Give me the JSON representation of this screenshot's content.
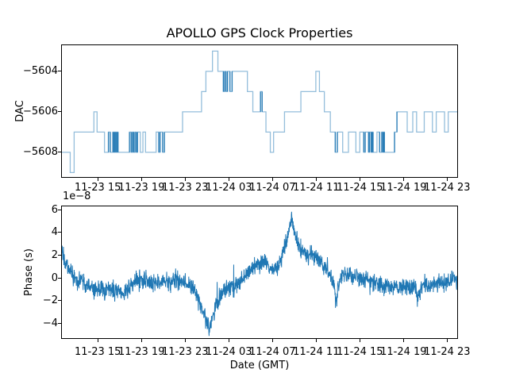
{
  "figure": {
    "background": "#ffffff",
    "line_color": "#1f77b4",
    "step_line_light": "rgba(31,119,180,0.48)",
    "step_line_dark": "rgba(31,119,180,0.92)"
  },
  "chart_data": [
    {
      "type": "line",
      "name": "dac-subplot",
      "title": "APOLLO GPS Clock Properties",
      "ylabel": "DAC",
      "drawstyle": "steps-post",
      "legend": "none",
      "grid": false,
      "yticks": [
        -5604,
        -5606,
        -5608
      ],
      "yticklabels": [
        "−5604",
        "−5606",
        "−5608"
      ],
      "ylim": [
        -5609.22,
        -5602.71
      ],
      "xlim_hours": [
        11.71,
        47.92
      ],
      "xtick_hours": [
        15,
        19,
        23,
        27,
        31,
        35,
        39,
        43,
        47
      ],
      "xticklabels": [
        "11-23 15",
        "11-23 19",
        "11-23 23",
        "11-24 03",
        "11-24 07",
        "11-24 11",
        "11-24 15",
        "11-24 19",
        "11-24 23"
      ],
      "step_points": [
        [
          11.71,
          -5608
        ],
        [
          12.47,
          -5609
        ],
        [
          12.83,
          -5607
        ],
        [
          14.64,
          -5606
        ],
        [
          14.93,
          -5607
        ],
        [
          15.61,
          -5608
        ],
        [
          15.97,
          -5607
        ],
        [
          16.14,
          -5608
        ],
        [
          16.38,
          -5607
        ],
        [
          16.45,
          -5608
        ],
        [
          16.55,
          -5607
        ],
        [
          16.65,
          -5608
        ],
        [
          16.75,
          -5607
        ],
        [
          16.85,
          -5608
        ],
        [
          17.9,
          -5607
        ],
        [
          18.05,
          -5608
        ],
        [
          18.17,
          -5607
        ],
        [
          18.28,
          -5608
        ],
        [
          18.4,
          -5607
        ],
        [
          18.52,
          -5608
        ],
        [
          18.64,
          -5607
        ],
        [
          18.89,
          -5608
        ],
        [
          19.13,
          -5607
        ],
        [
          19.37,
          -5608
        ],
        [
          20.34,
          -5607
        ],
        [
          20.58,
          -5608
        ],
        [
          20.7,
          -5607
        ],
        [
          20.94,
          -5608
        ],
        [
          21.1,
          -5607
        ],
        [
          22.76,
          -5606
        ],
        [
          24.5,
          -5605
        ],
        [
          24.9,
          -5604
        ],
        [
          25.5,
          -5603
        ],
        [
          26.0,
          -5604
        ],
        [
          26.5,
          -5605
        ],
        [
          26.62,
          -5604
        ],
        [
          26.75,
          -5605
        ],
        [
          26.88,
          -5604
        ],
        [
          27.1,
          -5605
        ],
        [
          27.3,
          -5604
        ],
        [
          28.7,
          -5605
        ],
        [
          29.2,
          -5606
        ],
        [
          29.9,
          -5605
        ],
        [
          30.05,
          -5606
        ],
        [
          30.4,
          -5607
        ],
        [
          30.8,
          -5608
        ],
        [
          31.1,
          -5607
        ],
        [
          32.1,
          -5606
        ],
        [
          33.6,
          -5605
        ],
        [
          34.97,
          -5604
        ],
        [
          35.3,
          -5605
        ],
        [
          35.75,
          -5606
        ],
        [
          36.3,
          -5607
        ],
        [
          36.75,
          -5608
        ],
        [
          36.94,
          -5607
        ],
        [
          37.43,
          -5608
        ],
        [
          37.96,
          -5607
        ],
        [
          38.64,
          -5608
        ],
        [
          39.0,
          -5607
        ],
        [
          39.36,
          -5608
        ],
        [
          39.49,
          -5607
        ],
        [
          39.8,
          -5608
        ],
        [
          39.9,
          -5607
        ],
        [
          40.05,
          -5608
        ],
        [
          40.12,
          -5607
        ],
        [
          40.21,
          -5608
        ],
        [
          40.57,
          -5607
        ],
        [
          40.81,
          -5608
        ],
        [
          41.01,
          -5607
        ],
        [
          41.12,
          -5608
        ],
        [
          41.18,
          -5607
        ],
        [
          41.25,
          -5608
        ],
        [
          42.18,
          -5607
        ],
        [
          42.4,
          -5606
        ],
        [
          43.34,
          -5607
        ],
        [
          43.85,
          -5606
        ],
        [
          44.2,
          -5607
        ],
        [
          44.9,
          -5606
        ],
        [
          45.65,
          -5607
        ],
        [
          46.0,
          -5606
        ],
        [
          46.76,
          -5607
        ],
        [
          47.1,
          -5606
        ]
      ],
      "dark_pulse_threshold_hours": 0.23
    },
    {
      "type": "line",
      "name": "phase-subplot",
      "ylabel": "Phase (s)",
      "xlabel": "Date (GMT)",
      "offset_text": "1e−8",
      "unit_scale": 1e-08,
      "legend": "none",
      "grid": false,
      "yticks": [
        6,
        4,
        2,
        0,
        -2,
        -4
      ],
      "yticklabels": [
        "6",
        "4",
        "2",
        "0",
        "−2",
        "−4"
      ],
      "ylim": [
        -5.3,
        6.28
      ],
      "xlim_hours": [
        11.71,
        47.92
      ],
      "xtick_hours": [
        15,
        19,
        23,
        27,
        31,
        35,
        39,
        43,
        47
      ],
      "xticklabels": [
        "11-23 15",
        "11-23 19",
        "11-23 23",
        "11-24 03",
        "11-24 07",
        "11-24 11",
        "11-24 15",
        "11-24 19",
        "11-24 23"
      ],
      "anchors": [
        [
          11.71,
          2.3
        ],
        [
          12.0,
          1.6
        ],
        [
          12.3,
          0.9
        ],
        [
          12.6,
          0.5
        ],
        [
          12.9,
          0.0
        ],
        [
          13.2,
          -0.4
        ],
        [
          13.5,
          0.2
        ],
        [
          13.8,
          -0.5
        ],
        [
          14.1,
          -0.9
        ],
        [
          14.5,
          -0.7
        ],
        [
          14.9,
          -1.1
        ],
        [
          15.3,
          -0.8
        ],
        [
          15.7,
          -1.2
        ],
        [
          16.1,
          -0.9
        ],
        [
          16.5,
          -1.3
        ],
        [
          16.9,
          -1.0
        ],
        [
          17.3,
          -1.5
        ],
        [
          17.7,
          -1.2
        ],
        [
          18.1,
          -0.5
        ],
        [
          18.5,
          -0.1
        ],
        [
          18.9,
          -0.3
        ],
        [
          19.3,
          -0.2
        ],
        [
          19.7,
          -0.4
        ],
        [
          20.1,
          -0.2
        ],
        [
          20.5,
          -0.3
        ],
        [
          20.9,
          -0.5
        ],
        [
          21.3,
          -0.3
        ],
        [
          21.7,
          -0.4
        ],
        [
          22.1,
          -0.2
        ],
        [
          22.5,
          -0.4
        ],
        [
          22.9,
          -0.3
        ],
        [
          23.3,
          -0.6
        ],
        [
          23.7,
          -1.0
        ],
        [
          24.1,
          -1.6
        ],
        [
          24.5,
          -2.6
        ],
        [
          24.8,
          -3.4
        ],
        [
          25.0,
          -4.0
        ],
        [
          25.2,
          -4.3
        ],
        [
          25.5,
          -3.6
        ],
        [
          25.8,
          -2.6
        ],
        [
          26.1,
          -1.8
        ],
        [
          26.4,
          -1.2
        ],
        [
          26.7,
          -0.9
        ],
        [
          27.0,
          -0.7
        ],
        [
          27.3,
          -0.5
        ],
        [
          27.45,
          -1.5
        ],
        [
          27.6,
          -0.6
        ],
        [
          27.9,
          -0.5
        ],
        [
          28.2,
          -0.2
        ],
        [
          28.5,
          0.1
        ],
        [
          28.8,
          0.5
        ],
        [
          29.1,
          0.9
        ],
        [
          29.4,
          1.2
        ],
        [
          29.7,
          1.0
        ],
        [
          30.0,
          1.3
        ],
        [
          30.3,
          1.6
        ],
        [
          30.6,
          1.1
        ],
        [
          30.9,
          0.5
        ],
        [
          31.2,
          0.4
        ],
        [
          31.5,
          0.9
        ],
        [
          31.8,
          1.9
        ],
        [
          32.1,
          2.6
        ],
        [
          32.4,
          3.6
        ],
        [
          32.6,
          4.6
        ],
        [
          32.75,
          5.2
        ],
        [
          32.9,
          4.4
        ],
        [
          33.1,
          3.6
        ],
        [
          33.4,
          2.9
        ],
        [
          33.7,
          2.3
        ],
        [
          34.0,
          2.0
        ],
        [
          34.3,
          1.8
        ],
        [
          34.6,
          2.1
        ],
        [
          34.9,
          1.9
        ],
        [
          35.2,
          1.5
        ],
        [
          35.5,
          1.2
        ],
        [
          35.8,
          0.9
        ],
        [
          36.1,
          0.6
        ],
        [
          36.4,
          0.0
        ],
        [
          36.7,
          -1.0
        ],
        [
          36.85,
          -2.3
        ],
        [
          37.0,
          -1.2
        ],
        [
          37.2,
          -0.1
        ],
        [
          37.5,
          0.4
        ],
        [
          37.8,
          0.2
        ],
        [
          38.1,
          0.4
        ],
        [
          38.4,
          0.1
        ],
        [
          38.7,
          0.3
        ],
        [
          39.0,
          -0.1
        ],
        [
          39.3,
          -0.3
        ],
        [
          39.6,
          0.0
        ],
        [
          39.9,
          -0.3
        ],
        [
          40.2,
          -0.5
        ],
        [
          40.5,
          -0.4
        ],
        [
          40.8,
          -0.6
        ],
        [
          41.1,
          -0.8
        ],
        [
          41.4,
          -0.6
        ],
        [
          41.7,
          -0.8
        ],
        [
          42.0,
          -0.9
        ],
        [
          42.3,
          -0.7
        ],
        [
          42.6,
          -0.9
        ],
        [
          42.9,
          -0.8
        ],
        [
          43.2,
          -0.6
        ],
        [
          43.5,
          -0.8
        ],
        [
          43.8,
          -0.9
        ],
        [
          44.1,
          -1.1
        ],
        [
          44.35,
          -1.9
        ],
        [
          44.5,
          -1.0
        ],
        [
          44.8,
          -0.6
        ],
        [
          45.1,
          -0.5
        ],
        [
          45.4,
          -0.7
        ],
        [
          45.7,
          -0.4
        ],
        [
          46.0,
          -0.6
        ],
        [
          46.3,
          -0.4
        ],
        [
          46.6,
          -0.5
        ],
        [
          46.9,
          -0.3
        ],
        [
          47.2,
          -0.4
        ],
        [
          47.5,
          -0.2
        ],
        [
          47.92,
          -0.1
        ]
      ],
      "noise_sigma": 0.35,
      "noise_seed": 1123581321,
      "sample_step_hours": 0.02
    }
  ]
}
